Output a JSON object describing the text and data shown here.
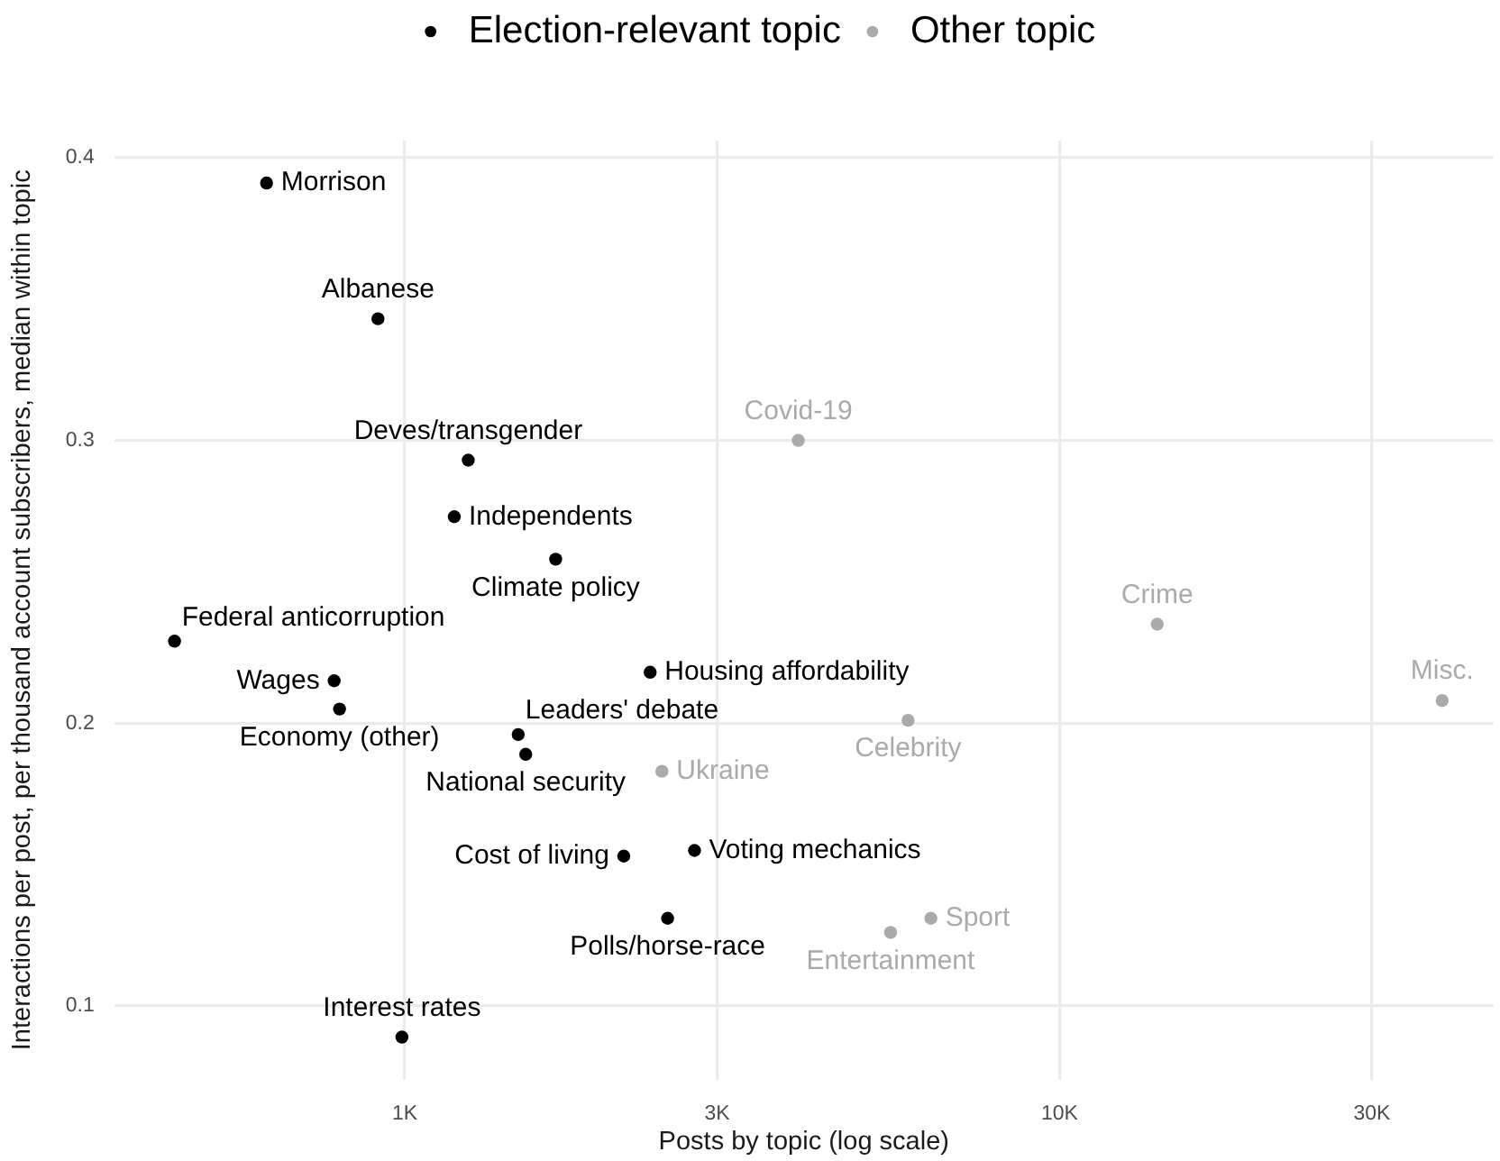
{
  "chart_data": {
    "type": "scatter",
    "xlabel": "Posts by topic (log scale)",
    "ylabel": "Interactions per post, per thousand account subscribers, median within topic",
    "series": [
      {
        "name": "Election-relevant topic",
        "color": "#000000",
        "x": [
          615,
          910,
          1250,
          1190,
          1700,
          445,
          2370,
          780,
          795,
          1490,
          1530,
          2770,
          2160,
          2520,
          990
        ],
        "values": [
          0.391,
          0.343,
          0.293,
          0.273,
          0.258,
          0.229,
          0.218,
          0.215,
          0.205,
          0.196,
          0.189,
          0.155,
          0.153,
          0.131,
          0.089
        ]
      },
      {
        "name": "Other topic",
        "color": "#aaaaaa",
        "x": [
          3990,
          14100,
          38400,
          5870,
          2470,
          6360,
          5520
        ],
        "values": [
          0.3,
          0.235,
          0.208,
          0.201,
          0.183,
          0.131,
          0.126
        ]
      }
    ],
    "annotations": [
      {
        "text": "Morrison",
        "x": 615,
        "y": 0.391
      },
      {
        "text": "Albanese",
        "x": 910,
        "y": 0.343
      },
      {
        "text": "Deves/transgender",
        "x": 1250,
        "y": 0.293
      },
      {
        "text": "Independents",
        "x": 1190,
        "y": 0.273
      },
      {
        "text": "Climate policy",
        "x": 1700,
        "y": 0.258
      },
      {
        "text": "Federal anticorruption",
        "x": 445,
        "y": 0.229
      },
      {
        "text": "Housing affordability",
        "x": 2370,
        "y": 0.218
      },
      {
        "text": "Wages",
        "x": 780,
        "y": 0.215
      },
      {
        "text": "Economy (other)",
        "x": 795,
        "y": 0.205
      },
      {
        "text": "Leaders' debate",
        "x": 1490,
        "y": 0.196
      },
      {
        "text": "National security",
        "x": 1530,
        "y": 0.189
      },
      {
        "text": "Voting mechanics",
        "x": 2770,
        "y": 0.155
      },
      {
        "text": "Cost of living",
        "x": 2160,
        "y": 0.153
      },
      {
        "text": "Polls/horse-race",
        "x": 2520,
        "y": 0.131
      },
      {
        "text": "Interest rates",
        "x": 990,
        "y": 0.089
      },
      {
        "text": "Covid-19",
        "x": 3990,
        "y": 0.3
      },
      {
        "text": "Crime",
        "x": 14100,
        "y": 0.235
      },
      {
        "text": "Misc.",
        "x": 38400,
        "y": 0.208
      },
      {
        "text": "Celebrity",
        "x": 5870,
        "y": 0.201
      },
      {
        "text": "Ukraine",
        "x": 2470,
        "y": 0.183
      },
      {
        "text": "Sport",
        "x": 6360,
        "y": 0.131
      },
      {
        "text": "Entertainment",
        "x": 5520,
        "y": 0.126
      }
    ],
    "xlim": [
      360,
      46000
    ],
    "ylim": [
      0.074,
      0.406
    ],
    "xticks": [
      {
        "value": 1000,
        "label": "1K"
      },
      {
        "value": 3000,
        "label": "3K"
      },
      {
        "value": 10000,
        "label": "10K"
      },
      {
        "value": 30000,
        "label": "30K"
      }
    ],
    "yticks": [
      0.1,
      0.2,
      0.3,
      0.4
    ],
    "log": "x",
    "grid": true,
    "legend": "top",
    "marker": "circle"
  }
}
